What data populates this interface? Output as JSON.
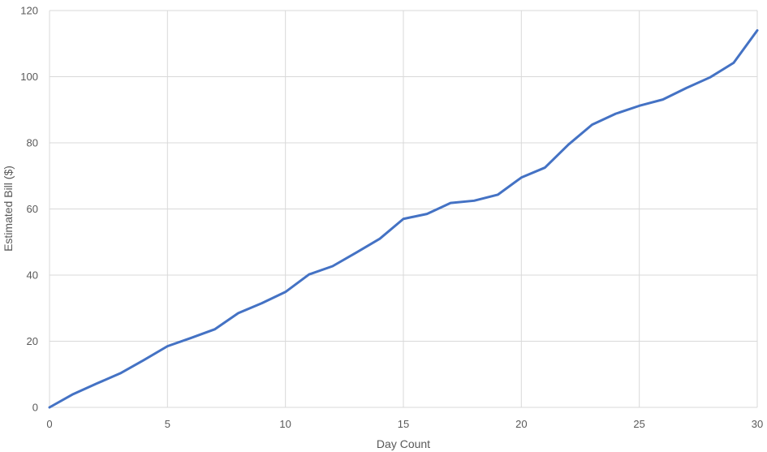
{
  "chart_data": {
    "type": "line",
    "title": "",
    "xlabel": "Day Count",
    "ylabel": "Estimated Bill ($)",
    "xlim": [
      0,
      30
    ],
    "ylim": [
      0,
      120
    ],
    "x_ticks": [
      0,
      5,
      10,
      15,
      20,
      25,
      30
    ],
    "y_ticks": [
      0,
      20,
      40,
      60,
      80,
      100,
      120
    ],
    "grid": true,
    "legend": "none",
    "colors": {
      "series": "#4472c4",
      "grid": "#d9d9d9",
      "text": "#595959"
    },
    "x": [
      0,
      1,
      2,
      3,
      4,
      5,
      6,
      7,
      8,
      9,
      10,
      11,
      12,
      13,
      14,
      15,
      16,
      17,
      18,
      19,
      20,
      21,
      22,
      23,
      24,
      25,
      26,
      27,
      28,
      29,
      30
    ],
    "series": [
      {
        "values": [
          0,
          4,
          7.2,
          10.3,
          14.3,
          18.5,
          21,
          23.6,
          28.5,
          31.5,
          34.9,
          40.2,
          42.7,
          46.8,
          51,
          57,
          58.5,
          61.8,
          62.5,
          64.3,
          69.5,
          72.5,
          79.5,
          85.5,
          88.8,
          91.2,
          93.1,
          96.6,
          99.8,
          104.2,
          114
        ]
      }
    ]
  }
}
